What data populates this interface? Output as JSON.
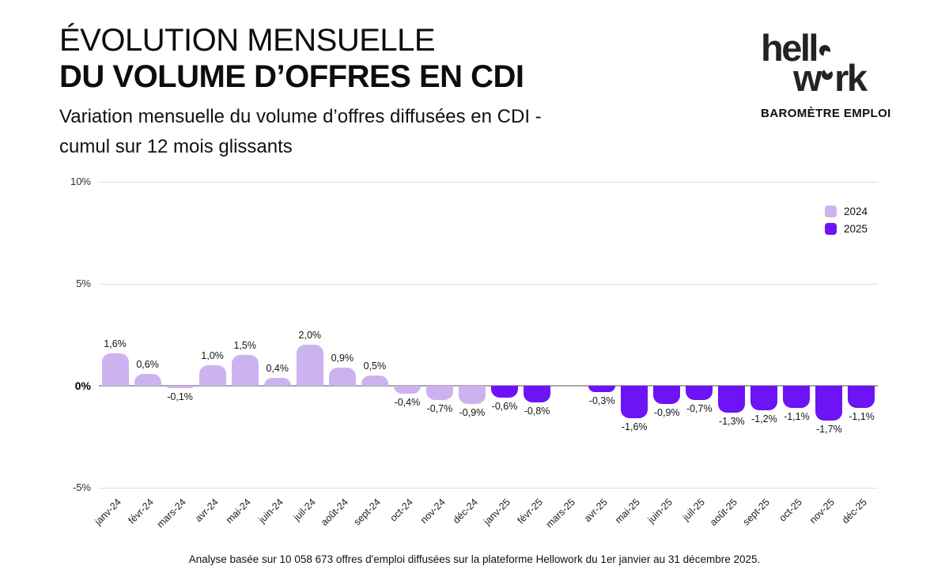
{
  "header": {
    "title_line1": "ÉVOLUTION MENSUELLE",
    "title_line2": "DU VOLUME D’OFFRES EN CDI",
    "subtitle_line1": "Variation mensuelle du volume d’offres diffusées en CDI -",
    "subtitle_line2": "cumul sur 12 mois glissants"
  },
  "brand": {
    "logo_part1": "hell",
    "logo_part2": "w",
    "logo_part3": "rk",
    "logo_name": "hellowork",
    "tagline": "BAROMÈTRE EMPLOI"
  },
  "legend": [
    {
      "label": "2024",
      "color": "#cdb2f0"
    },
    {
      "label": "2025",
      "color": "#6d13f5"
    }
  ],
  "footer": {
    "note": "Analyse basée sur 10 058 673 offres d'emploi diffusées sur la plateforme Hellowork du 1er janvier au 31 décembre 2025."
  },
  "chart_data": {
    "type": "bar",
    "title": "Évolution mensuelle du volume d'offres en CDI",
    "xlabel": "",
    "ylabel": "",
    "ylim": [
      -5,
      10
    ],
    "grid": "horizontal",
    "legend_position": "top-right",
    "categories": [
      "janv-24",
      "févr-24",
      "mars-24",
      "avr-24",
      "mai-24",
      "juin-24",
      "juil-24",
      "août-24",
      "sept-24",
      "oct-24",
      "nov-24",
      "déc-24",
      "janv-25",
      "févr-25",
      "mars-25",
      "avr-25",
      "mai-25",
      "juin-25",
      "juil-25",
      "août-25",
      "sept-25",
      "oct-25",
      "nov-25",
      "déc-25"
    ],
    "series": [
      {
        "name": "2024",
        "color": "#cdb2f0",
        "values": [
          1.6,
          0.6,
          -0.1,
          1.0,
          1.5,
          0.4,
          2.0,
          0.9,
          0.5,
          -0.4,
          -0.7,
          -0.9,
          null,
          null,
          null,
          null,
          null,
          null,
          null,
          null,
          null,
          null,
          null,
          null
        ]
      },
      {
        "name": "2025",
        "color": "#6d13f5",
        "values": [
          null,
          null,
          null,
          null,
          null,
          null,
          null,
          null,
          null,
          null,
          null,
          null,
          -0.6,
          -0.8,
          null,
          -0.3,
          -1.6,
          -0.9,
          -0.7,
          -1.3,
          -1.2,
          -1.1,
          -1.7,
          -1.1
        ]
      }
    ],
    "value_labels": [
      "1,6%",
      "0,6%",
      "-0,1%",
      "1,0%",
      "1,5%",
      "0,4%",
      "2,0%",
      "0,9%",
      "0,5%",
      "-0,4%",
      "-0,7%",
      "-0,9%",
      "-0,6%",
      "-0,8%",
      null,
      "-0,3%",
      "-1,6%",
      "-0,9%",
      "-0,7%",
      "-1,3%",
      "-1,2%",
      "-1,1%",
      "-1,7%",
      "-1,1%"
    ],
    "yticks": [
      {
        "value": 10,
        "label": "10%",
        "bold": false
      },
      {
        "value": 5,
        "label": "5%",
        "bold": false
      },
      {
        "value": 0,
        "label": "0%",
        "bold": true
      },
      {
        "value": -5,
        "label": "-5%",
        "bold": false
      }
    ]
  }
}
